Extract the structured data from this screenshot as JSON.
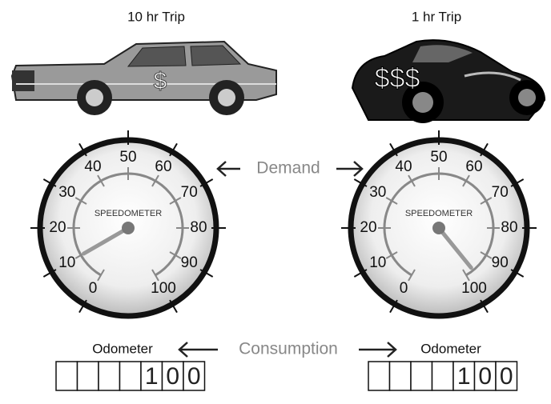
{
  "trips": [
    {
      "title": "10 hr Trip",
      "price": "$",
      "gauge": {
        "label": "SPEEDOMETER",
        "scale": [
          0,
          10,
          20,
          30,
          40,
          50,
          60,
          70,
          80,
          90,
          100
        ],
        "needle": 10
      },
      "odometer": {
        "label": "Odometer",
        "digits": [
          "1",
          "0",
          "0"
        ]
      }
    },
    {
      "title": "1 hr Trip",
      "price": "$$$",
      "gauge": {
        "label": "SPEEDOMETER",
        "scale": [
          0,
          10,
          20,
          30,
          40,
          50,
          60,
          70,
          80,
          90,
          100
        ],
        "needle": 97
      },
      "odometer": {
        "label": "Odometer",
        "digits": [
          "1",
          "0",
          "0"
        ]
      }
    }
  ],
  "demand": "Demand",
  "consumption": "Consumption"
}
